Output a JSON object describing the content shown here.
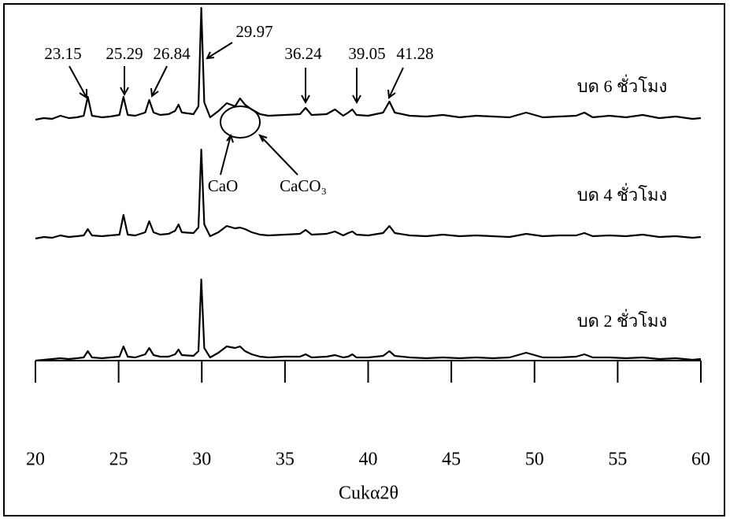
{
  "chart_data": {
    "type": "line",
    "x_label": "Cukα2θ",
    "xlim": [
      20,
      60
    ],
    "xticks": [
      20,
      25,
      30,
      35,
      40,
      45,
      50,
      55,
      60
    ],
    "x": [
      20,
      20.5,
      21,
      21.5,
      22,
      22.5,
      22.9,
      23.15,
      23.4,
      24,
      24.5,
      25.05,
      25.29,
      25.55,
      26,
      26.6,
      26.84,
      27.1,
      27.5,
      28,
      28.4,
      28.6,
      28.8,
      29.5,
      29.8,
      29.97,
      30.15,
      30.5,
      31,
      31.5,
      32,
      32.3,
      32.6,
      33,
      33.5,
      34,
      35,
      35.9,
      36.24,
      36.6,
      37.5,
      38,
      38.5,
      38.8,
      39.05,
      39.3,
      40,
      40.9,
      41.28,
      41.6,
      42.5,
      43.5,
      44.5,
      45.5,
      46.5,
      47.5,
      48.5,
      49.5,
      50.5,
      51.5,
      52.5,
      53,
      53.5,
      54.5,
      55.5,
      56.5,
      57.5,
      58.5,
      59.5,
      60
    ],
    "series": [
      {
        "name": "บด 6 ชั่วโมง",
        "color": "#000000",
        "values": [
          3,
          5,
          4,
          8,
          5,
          6,
          8,
          32,
          8,
          6,
          7,
          9,
          32,
          9,
          8,
          12,
          28,
          12,
          9,
          10,
          14,
          22,
          12,
          10,
          20,
          145,
          25,
          6,
          14,
          24,
          20,
          30,
          22,
          16,
          10,
          8,
          9,
          10,
          18,
          9,
          10,
          16,
          8,
          12,
          16,
          9,
          8,
          12,
          26,
          12,
          8,
          7,
          9,
          6,
          8,
          7,
          6,
          12,
          6,
          7,
          8,
          12,
          6,
          8,
          6,
          9,
          5,
          7,
          4,
          5
        ]
      },
      {
        "name": "บด 4 ชั่วโมง",
        "color": "#000000",
        "values": [
          2,
          4,
          3,
          6,
          4,
          5,
          6,
          14,
          6,
          5,
          6,
          7,
          32,
          7,
          6,
          10,
          24,
          10,
          7,
          8,
          12,
          20,
          10,
          9,
          16,
          115,
          20,
          5,
          10,
          18,
          15,
          16,
          14,
          10,
          7,
          6,
          7,
          8,
          13,
          7,
          8,
          11,
          6,
          9,
          11,
          7,
          6,
          9,
          18,
          9,
          6,
          5,
          7,
          5,
          6,
          5,
          4,
          8,
          5,
          6,
          6,
          9,
          5,
          6,
          5,
          7,
          4,
          5,
          3,
          4
        ]
      },
      {
        "name": "บด 2 ชั่วโมง",
        "color": "#000000",
        "values": [
          2,
          3,
          4,
          5,
          4,
          5,
          6,
          14,
          6,
          5,
          6,
          7,
          20,
          7,
          6,
          10,
          18,
          9,
          7,
          7,
          10,
          16,
          9,
          8,
          14,
          105,
          18,
          6,
          12,
          20,
          18,
          20,
          14,
          10,
          7,
          6,
          7,
          7,
          10,
          6,
          7,
          9,
          6,
          7,
          10,
          6,
          6,
          8,
          14,
          8,
          6,
          5,
          6,
          5,
          6,
          5,
          6,
          12,
          6,
          6,
          7,
          10,
          6,
          6,
          5,
          6,
          4,
          5,
          3,
          4
        ]
      }
    ],
    "annotations": [
      "23.15",
      "25.29",
      "26.84",
      "29.97",
      "36.24",
      "39.05",
      "41.28",
      "CaO",
      "CaCO₃"
    ]
  }
}
